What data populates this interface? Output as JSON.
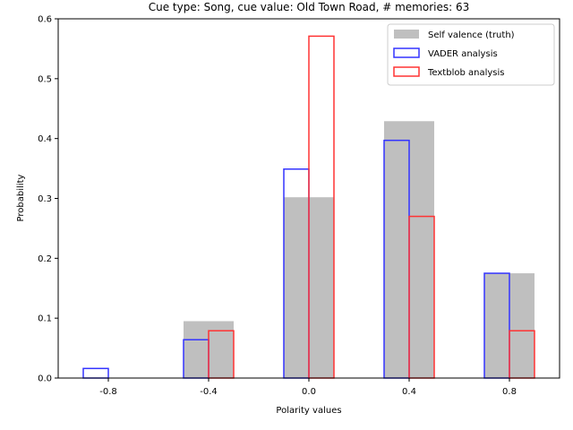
{
  "chart_data": {
    "type": "bar",
    "title": "Cue type: Song, cue value: Old Town Road, # memories: 63",
    "xlabel": "Polarity values",
    "ylabel": "Probability",
    "xlim": [
      -1.0,
      1.0
    ],
    "ylim": [
      0,
      0.6
    ],
    "x_ticks": [
      -0.8,
      -0.4,
      0.0,
      0.4,
      0.8
    ],
    "x_tick_labels": [
      "-0.8",
      "-0.4",
      "0.0",
      "0.4",
      "0.8"
    ],
    "y_ticks": [
      0.0,
      0.1,
      0.2,
      0.3,
      0.4,
      0.5,
      0.6
    ],
    "y_tick_labels": [
      "0.0",
      "0.1",
      "0.2",
      "0.3",
      "0.4",
      "0.5",
      "0.6"
    ],
    "grid": false,
    "legend_position": "top-right",
    "series": [
      {
        "name": "Self valence (truth)",
        "style": "filled",
        "color": "#bfbfbf",
        "bins": [
          [
            -0.9,
            -0.7
          ],
          [
            -0.5,
            -0.3
          ],
          [
            -0.1,
            0.1
          ],
          [
            0.3,
            0.5
          ],
          [
            0.7,
            0.9
          ]
        ],
        "values": [
          0.0,
          0.095,
          0.302,
          0.429,
          0.175
        ]
      },
      {
        "name": "VADER analysis",
        "style": "outline",
        "color": "#3333ff",
        "bins": [
          [
            -0.9,
            -0.8
          ],
          [
            -0.5,
            -0.4
          ],
          [
            -0.1,
            0.0
          ],
          [
            0.3,
            0.4
          ],
          [
            0.7,
            0.8
          ]
        ],
        "values": [
          0.016,
          0.064,
          0.349,
          0.397,
          0.175
        ]
      },
      {
        "name": "Textblob analysis",
        "style": "outline",
        "color": "#ff3333",
        "bins": [
          [
            -0.8,
            -0.7
          ],
          [
            -0.4,
            -0.3
          ],
          [
            0.0,
            0.1
          ],
          [
            0.4,
            0.5
          ],
          [
            0.8,
            0.9
          ]
        ],
        "values": [
          0.0,
          0.079,
          0.571,
          0.27,
          0.079
        ]
      }
    ]
  }
}
